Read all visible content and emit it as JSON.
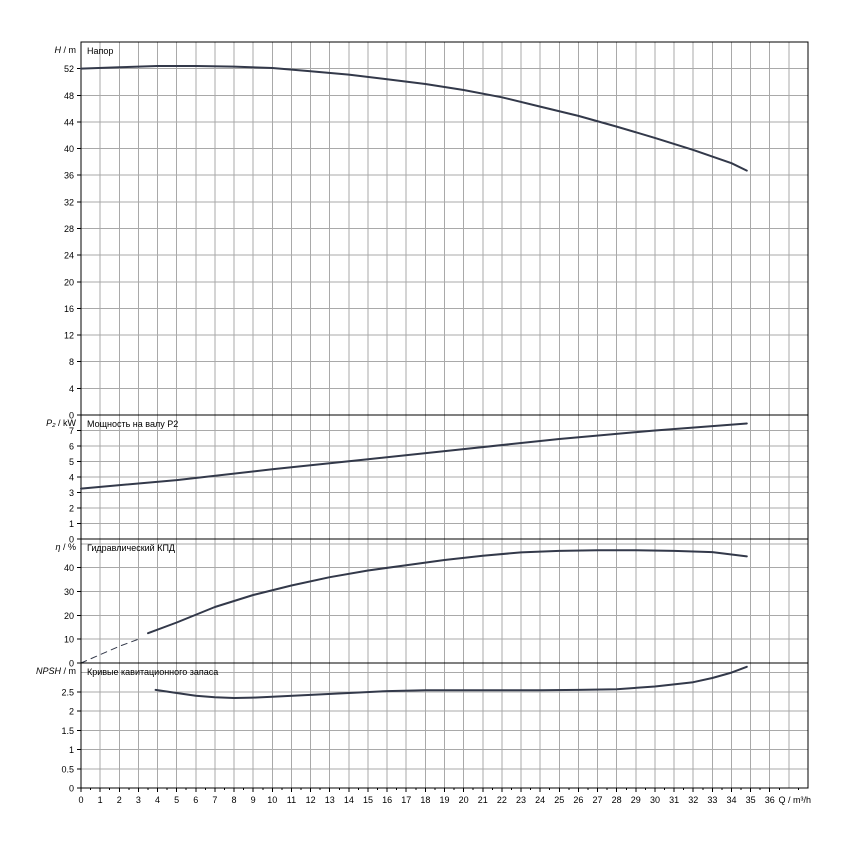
{
  "chart_data": [
    {
      "type": "line",
      "label_prefix": "H",
      "label_unit": " / m",
      "title": "Напор",
      "xlim": [
        0,
        38
      ],
      "ylim": [
        0,
        56
      ],
      "yticks": [
        0,
        4,
        8,
        12,
        16,
        20,
        24,
        28,
        32,
        36,
        40,
        44,
        48,
        52
      ],
      "grid": true,
      "series": [
        {
          "x": [
            0,
            2,
            4,
            6,
            8,
            10,
            12,
            14,
            16,
            18,
            20,
            22,
            24,
            26,
            28,
            30,
            32,
            34,
            34.8
          ],
          "y": [
            52.0,
            52.2,
            52.4,
            52.4,
            52.3,
            52.1,
            51.6,
            51.1,
            50.4,
            49.7,
            48.8,
            47.7,
            46.3,
            44.9,
            43.3,
            41.6,
            39.8,
            37.8,
            36.7
          ]
        }
      ]
    },
    {
      "type": "line",
      "label_prefix": "P₂",
      "label_unit": " / kW",
      "title": "Мощность на валу P2",
      "xlim": [
        0,
        38
      ],
      "ylim": [
        0,
        8
      ],
      "yticks": [
        0,
        1,
        2,
        3,
        4,
        5,
        6,
        7
      ],
      "grid": true,
      "series": [
        {
          "x": [
            0,
            5,
            10,
            15,
            20,
            25,
            30,
            34.8
          ],
          "y": [
            3.25,
            3.8,
            4.5,
            5.15,
            5.8,
            6.45,
            7.0,
            7.45
          ]
        }
      ]
    },
    {
      "type": "line",
      "label_prefix": "η",
      "label_unit": " / %",
      "title": "Гидравлический КПД",
      "xlim": [
        0,
        38
      ],
      "ylim": [
        0,
        52
      ],
      "yticks": [
        0,
        10,
        20,
        30,
        40
      ],
      "grid": true,
      "series": [
        {
          "x": [
            0,
            1,
            2,
            3
          ],
          "y": [
            0,
            3.5,
            7,
            10
          ],
          "style": "dashed"
        },
        {
          "x": [
            3.5,
            5,
            7,
            9,
            11,
            13,
            15,
            17,
            19,
            21,
            23,
            25,
            27,
            29,
            31,
            33,
            34.8
          ],
          "y": [
            12.5,
            17,
            23.5,
            28.5,
            32.5,
            36,
            38.8,
            41,
            43.2,
            45,
            46.4,
            47,
            47.3,
            47.3,
            47.0,
            46.5,
            44.7
          ]
        }
      ]
    },
    {
      "type": "line",
      "label_prefix": "NPSH",
      "label_unit": " / m",
      "title": "Кривые кавитационного запаса",
      "xlim": [
        0,
        38
      ],
      "ylim": [
        0,
        3.25
      ],
      "yticks": [
        0,
        0.5,
        1,
        1.5,
        2,
        2.5
      ],
      "ytick_labels": [
        "0",
        "0.5",
        "1",
        "1.5",
        "2",
        "2.5"
      ],
      "grid": true,
      "xticks": [
        0,
        1,
        2,
        3,
        4,
        5,
        6,
        7,
        8,
        9,
        10,
        11,
        12,
        13,
        14,
        15,
        16,
        17,
        18,
        19,
        20,
        21,
        22,
        23,
        24,
        25,
        26,
        27,
        28,
        29,
        30,
        31,
        32,
        33,
        34,
        35,
        36
      ],
      "xlabel": "Q / m³/h",
      "series": [
        {
          "x": [
            3.9,
            5,
            6,
            7,
            8,
            9,
            10,
            12,
            14,
            16,
            18,
            20,
            22,
            24,
            26,
            28,
            30,
            32,
            33,
            34,
            34.8
          ],
          "y": [
            2.55,
            2.47,
            2.4,
            2.36,
            2.34,
            2.35,
            2.37,
            2.42,
            2.47,
            2.52,
            2.54,
            2.54,
            2.54,
            2.54,
            2.55,
            2.57,
            2.64,
            2.75,
            2.86,
            3.0,
            3.15
          ]
        }
      ]
    }
  ],
  "colors": {
    "curve": "#33394a",
    "grid": "#a9a9a9",
    "frame": "#000000"
  }
}
